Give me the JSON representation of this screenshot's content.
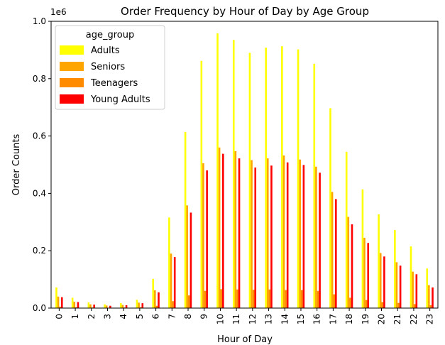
{
  "chart_data": {
    "type": "bar",
    "title": "Order Frequency by Hour of Day by Age Group",
    "xlabel": "Hour of Day",
    "ylabel": "Order Counts",
    "y_scale_label": "1e6",
    "ylim": [
      0,
      1.0
    ],
    "y_ticks": [
      "0.0",
      "0.2",
      "0.4",
      "0.6",
      "0.8",
      "1.0"
    ],
    "categories": [
      "0",
      "1",
      "2",
      "3",
      "4",
      "5",
      "6",
      "7",
      "8",
      "9",
      "10",
      "11",
      "12",
      "13",
      "14",
      "15",
      "16",
      "17",
      "18",
      "19",
      "20",
      "21",
      "22",
      "23"
    ],
    "legend_title": "age_group",
    "legend_position": "top-left",
    "grid": false,
    "series": [
      {
        "name": "Adults",
        "color": "#ffff00",
        "values": [
          0.072,
          0.036,
          0.02,
          0.013,
          0.017,
          0.029,
          0.102,
          0.316,
          0.614,
          0.862,
          0.958,
          0.935,
          0.89,
          0.908,
          0.913,
          0.902,
          0.852,
          0.697,
          0.545,
          0.414,
          0.327,
          0.272,
          0.215,
          0.138
        ]
      },
      {
        "name": "Seniors",
        "color": "#ffa500",
        "values": [
          0.04,
          0.022,
          0.013,
          0.009,
          0.011,
          0.019,
          0.062,
          0.19,
          0.358,
          0.505,
          0.56,
          0.547,
          0.516,
          0.522,
          0.532,
          0.518,
          0.493,
          0.405,
          0.318,
          0.245,
          0.192,
          0.16,
          0.127,
          0.08
        ]
      },
      {
        "name": "Teenagers",
        "color": "#ff8c00",
        "values": [
          0.005,
          0.003,
          0.002,
          0.001,
          0.002,
          0.003,
          0.008,
          0.024,
          0.044,
          0.06,
          0.066,
          0.065,
          0.064,
          0.065,
          0.063,
          0.063,
          0.06,
          0.048,
          0.036,
          0.028,
          0.021,
          0.018,
          0.014,
          0.01
        ]
      },
      {
        "name": "Young Adults",
        "color": "#ff0000",
        "values": [
          0.038,
          0.021,
          0.012,
          0.008,
          0.01,
          0.017,
          0.055,
          0.178,
          0.333,
          0.48,
          0.538,
          0.522,
          0.49,
          0.497,
          0.508,
          0.499,
          0.472,
          0.38,
          0.292,
          0.227,
          0.18,
          0.148,
          0.118,
          0.072
        ]
      }
    ]
  }
}
